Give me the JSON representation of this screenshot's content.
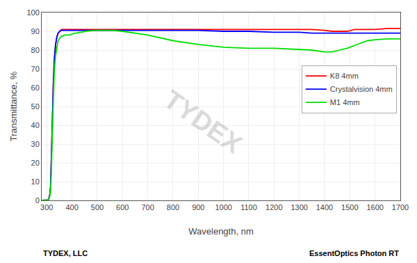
{
  "chart_data": {
    "type": "line",
    "xlabel": "Wavelength, nm",
    "ylabel": "Transmittance, %",
    "xlim": [
      280,
      1700
    ],
    "ylim": [
      0,
      100
    ],
    "xticks": [
      300,
      400,
      500,
      600,
      700,
      800,
      900,
      1000,
      1100,
      1200,
      1300,
      1400,
      1500,
      1600,
      1700
    ],
    "yticks": [
      0,
      10,
      20,
      30,
      40,
      50,
      60,
      70,
      80,
      90,
      100
    ],
    "grid": true,
    "legend": "upper right",
    "annotations": [
      "TYDEX",
      "TYDEX, LLC",
      "EssentOptics Photon RT"
    ],
    "series": [
      {
        "name": "K8 4mm",
        "color": "#ff0000",
        "x": [
          280,
          295,
          300,
          305,
          308,
          312,
          315,
          318,
          322,
          326,
          330,
          335,
          340,
          345,
          350,
          355,
          360,
          365,
          370,
          375,
          380,
          390,
          400,
          420,
          450,
          500,
          600,
          700,
          800,
          900,
          1000,
          1100,
          1200,
          1300,
          1350,
          1400,
          1430,
          1460,
          1490,
          1520,
          1550,
          1600,
          1650,
          1700
        ],
        "values": [
          0,
          0,
          0,
          0.2,
          0.8,
          3,
          7,
          18,
          40,
          62,
          75,
          83,
          87,
          89,
          90,
          90.5,
          91,
          91,
          91,
          91,
          91,
          91,
          91,
          91,
          91,
          91,
          91,
          91,
          91,
          91,
          91,
          91,
          91,
          91,
          91,
          90.5,
          90,
          90,
          90,
          91,
          91,
          91,
          91.5,
          91.5
        ]
      },
      {
        "name": "Crystalvision 4mm",
        "color": "#0000ff",
        "x": [
          280,
          295,
          300,
          305,
          308,
          312,
          315,
          318,
          322,
          326,
          330,
          335,
          340,
          345,
          350,
          355,
          360,
          365,
          370,
          375,
          380,
          390,
          400,
          420,
          450,
          500,
          600,
          700,
          800,
          900,
          1000,
          1100,
          1200,
          1300,
          1350,
          1400,
          1430,
          1460,
          1490,
          1520,
          1550,
          1600,
          1650,
          1700
        ],
        "values": [
          0,
          0,
          0,
          0.2,
          0.8,
          3,
          7,
          18,
          40,
          62,
          75,
          83,
          87,
          89,
          90,
          90.5,
          90.5,
          90.5,
          90.5,
          90.5,
          90.5,
          90.5,
          90.5,
          90.5,
          90.5,
          90.5,
          90.5,
          90.5,
          90.5,
          90.5,
          90,
          90,
          89.5,
          89.5,
          89,
          89,
          89,
          89,
          89,
          89,
          89,
          89,
          89,
          89
        ]
      },
      {
        "name": "M1 4mm",
        "color": "#00dd00",
        "x": [
          280,
          295,
          300,
          305,
          308,
          312,
          315,
          318,
          322,
          326,
          330,
          335,
          340,
          345,
          350,
          355,
          360,
          365,
          370,
          375,
          380,
          385,
          390,
          400,
          410,
          420,
          430,
          440,
          450,
          470,
          500,
          530,
          560,
          600,
          650,
          700,
          800,
          900,
          1000,
          1100,
          1200,
          1300,
          1350,
          1400,
          1430,
          1460,
          1490,
          1520,
          1550,
          1570,
          1600,
          1650,
          1700
        ],
        "values": [
          0,
          0,
          0,
          0,
          0.5,
          2,
          5,
          14,
          35,
          57,
          69,
          77,
          82,
          85,
          86,
          87,
          87.5,
          87.5,
          88,
          88,
          88,
          88,
          88,
          88.5,
          89,
          89,
          89.5,
          89.5,
          90,
          90.2,
          90.5,
          90.5,
          90.5,
          90,
          89,
          88,
          85,
          83,
          81.5,
          81,
          81,
          80.5,
          80,
          79,
          79,
          80,
          81,
          82.5,
          84,
          85,
          85.5,
          86,
          86
        ]
      }
    ]
  }
}
